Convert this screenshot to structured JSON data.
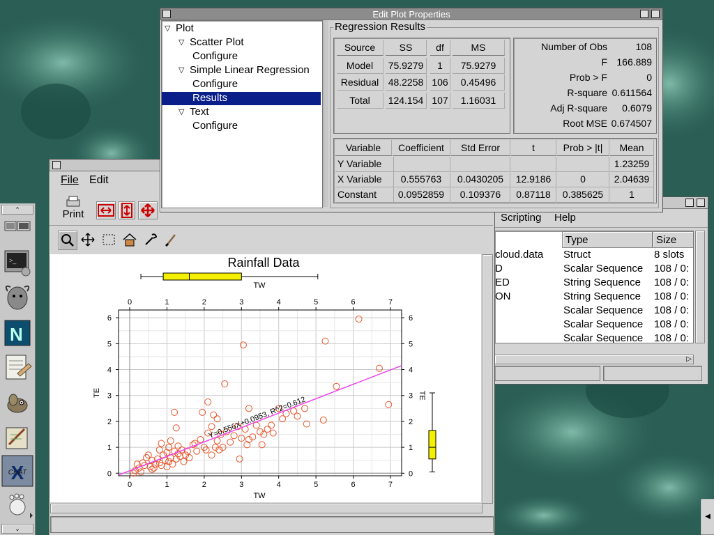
{
  "edit_plot_properties": {
    "title": "Edit Plot Properties",
    "tree": [
      {
        "label": "Plot",
        "level": 0,
        "expander": true
      },
      {
        "label": "Scatter Plot",
        "level": 1,
        "expander": true
      },
      {
        "label": "Configure",
        "level": 2,
        "expander": false
      },
      {
        "label": "Simple Linear Regression",
        "level": 1,
        "expander": true
      },
      {
        "label": "Configure",
        "level": 2,
        "expander": false
      },
      {
        "label": "Results",
        "level": 2,
        "expander": false,
        "selected": true
      },
      {
        "label": "Text",
        "level": 1,
        "expander": true
      },
      {
        "label": "Configure",
        "level": 2,
        "expander": false
      }
    ],
    "group_title": "Regression Results",
    "anova": {
      "headers": [
        "Source",
        "SS",
        "df",
        "MS"
      ],
      "rows": [
        [
          "Model",
          "75.9279",
          "1",
          "75.9279"
        ],
        [
          "Residual",
          "48.2258",
          "106",
          "0.45496"
        ],
        [
          "Total",
          "124.154",
          "107",
          "1.16031"
        ]
      ]
    },
    "stats": [
      [
        "Number of Obs",
        "108"
      ],
      [
        "F",
        "166.889"
      ],
      [
        "Prob > F",
        "0"
      ],
      [
        "R-square",
        "0.611564"
      ],
      [
        "Adj R-square",
        "0.6079"
      ],
      [
        "Root MSE",
        "0.674507"
      ]
    ],
    "coef": {
      "headers": [
        "Variable",
        "Coefficient",
        "Std Error",
        "t",
        "Prob > |t|",
        "Mean"
      ],
      "rows": [
        [
          "Y Variable",
          "",
          "",
          "",
          "",
          "1.23259"
        ],
        [
          "X Variable",
          "0.555763",
          "0.0430205",
          "12.9186",
          "0",
          "2.04639"
        ],
        [
          "Constant",
          "0.0952859",
          "0.109376",
          "0.87118",
          "0.385625",
          "1"
        ]
      ]
    }
  },
  "plot_window": {
    "menu": [
      "File",
      "Edit"
    ],
    "print_label": "Print",
    "chart_title": "Rainfall Data",
    "x_label": "TW",
    "y_label": "TE",
    "x_ticks": [
      "0",
      "1",
      "2",
      "3",
      "4",
      "5",
      "6",
      "7"
    ],
    "y_ticks": [
      "0",
      "1",
      "2",
      "3",
      "4",
      "5",
      "6"
    ],
    "regression_label": "Y=0.556X+0.0953, R^2=0.612"
  },
  "chart_data": {
    "type": "scatter",
    "title": "Rainfall Data",
    "xlabel": "TW",
    "ylabel": "TE",
    "xlim": [
      -0.3,
      7.3
    ],
    "ylim": [
      -0.1,
      6.3
    ],
    "fit_line": {
      "slope": 0.556,
      "intercept": 0.0953,
      "r_squared": 0.612
    },
    "points": [
      [
        0.1,
        0.0
      ],
      [
        0.15,
        0.1
      ],
      [
        0.2,
        0.35
      ],
      [
        0.25,
        0.2
      ],
      [
        0.3,
        0.05
      ],
      [
        0.35,
        0.4
      ],
      [
        0.4,
        0.3
      ],
      [
        0.45,
        0.6
      ],
      [
        0.5,
        0.7
      ],
      [
        0.55,
        0.25
      ],
      [
        0.6,
        0.15
      ],
      [
        0.6,
        0.5
      ],
      [
        0.65,
        0.2
      ],
      [
        0.7,
        0.35
      ],
      [
        0.75,
        0.55
      ],
      [
        0.8,
        0.4
      ],
      [
        0.8,
        0.9
      ],
      [
        0.85,
        0.3
      ],
      [
        0.85,
        1.15
      ],
      [
        0.9,
        0.7
      ],
      [
        0.95,
        0.5
      ],
      [
        1.0,
        0.25
      ],
      [
        1.0,
        0.8
      ],
      [
        1.05,
        0.45
      ],
      [
        1.05,
        1.0
      ],
      [
        1.1,
        0.6
      ],
      [
        1.1,
        1.25
      ],
      [
        1.15,
        0.35
      ],
      [
        1.2,
        0.85
      ],
      [
        1.2,
        2.35
      ],
      [
        1.25,
        0.55
      ],
      [
        1.25,
        1.75
      ],
      [
        1.3,
        0.75
      ],
      [
        1.3,
        1.05
      ],
      [
        1.35,
        0.65
      ],
      [
        1.4,
        0.9
      ],
      [
        1.45,
        0.45
      ],
      [
        1.5,
        0.7
      ],
      [
        1.55,
        0.85
      ],
      [
        1.6,
        0.6
      ],
      [
        1.7,
        1.1
      ],
      [
        1.75,
        1.15
      ],
      [
        1.8,
        0.85
      ],
      [
        1.9,
        1.3
      ],
      [
        1.95,
        2.35
      ],
      [
        2.0,
        1.0
      ],
      [
        2.05,
        0.9
      ],
      [
        2.1,
        1.55
      ],
      [
        2.1,
        2.75
      ],
      [
        2.2,
        0.7
      ],
      [
        2.2,
        1.8
      ],
      [
        2.25,
        2.25
      ],
      [
        2.3,
        1.0
      ],
      [
        2.35,
        1.25
      ],
      [
        2.35,
        2.1
      ],
      [
        2.4,
        0.9
      ],
      [
        2.45,
        1.5
      ],
      [
        2.5,
        1.0
      ],
      [
        2.55,
        3.45
      ],
      [
        2.6,
        1.6
      ],
      [
        2.7,
        1.2
      ],
      [
        2.8,
        1.45
      ],
      [
        2.9,
        1.8
      ],
      [
        2.95,
        0.55
      ],
      [
        3.0,
        1.35
      ],
      [
        3.05,
        4.95
      ],
      [
        3.1,
        1.7
      ],
      [
        3.15,
        1.1
      ],
      [
        3.2,
        1.3
      ],
      [
        3.2,
        2.5
      ],
      [
        3.3,
        1.4
      ],
      [
        3.4,
        1.85
      ],
      [
        3.5,
        1.6
      ],
      [
        3.55,
        1.1
      ],
      [
        3.6,
        1.5
      ],
      [
        3.7,
        1.7
      ],
      [
        3.8,
        1.85
      ],
      [
        3.85,
        1.55
      ],
      [
        4.0,
        2.5
      ],
      [
        4.1,
        2.1
      ],
      [
        4.2,
        2.3
      ],
      [
        4.4,
        2.4
      ],
      [
        4.5,
        2.2
      ],
      [
        4.7,
        2.5
      ],
      [
        4.75,
        1.9
      ],
      [
        5.2,
        2.05
      ],
      [
        5.25,
        5.1
      ],
      [
        5.55,
        3.35
      ],
      [
        6.15,
        5.95
      ],
      [
        6.7,
        4.05
      ],
      [
        6.95,
        2.65
      ]
    ],
    "boxplot_x": {
      "min": 0.3,
      "q1": 0.9,
      "median": 1.6,
      "q3": 3.0,
      "max": 5.05
    },
    "boxplot_y": {
      "min": 0.05,
      "q1": 0.55,
      "median": 1.0,
      "q3": 1.65,
      "max": 3.1
    }
  },
  "data_browser": {
    "menu": [
      "Scripting",
      "Help"
    ],
    "headers": [
      "Type",
      "Size"
    ],
    "rows": [
      {
        "name": "cloud.data",
        "type": "Struct",
        "size": "8 slots"
      },
      {
        "name": "D",
        "type": "Scalar Sequence",
        "size": "108 / 0:"
      },
      {
        "name": "ED",
        "type": "String Sequence",
        "size": "108 / 0:"
      },
      {
        "name": "ON",
        "type": "String Sequence",
        "size": "108 / 0:"
      },
      {
        "name": "",
        "type": "Scalar Sequence",
        "size": "108 / 0:"
      },
      {
        "name": "",
        "type": "Scalar Sequence",
        "size": "108 / 0:"
      },
      {
        "name": "",
        "type": "Scalar Sequence",
        "size": "108 / 0:"
      }
    ]
  },
  "dock": {
    "icons": [
      "monitor-icon",
      "terminal-gnu-icon",
      "gnu-head-icon",
      "netscape-icon",
      "notepad-hand-icon",
      "gimp-icon",
      "pen-paper-icon",
      "xchat-icon",
      "gnome-foot-icon"
    ],
    "chat_label": "CHAT"
  },
  "colors": {
    "selection": "#0a1e8a",
    "scatter": "#e8552a",
    "fit_line": "#ee44ee",
    "box": "#f4f000"
  }
}
